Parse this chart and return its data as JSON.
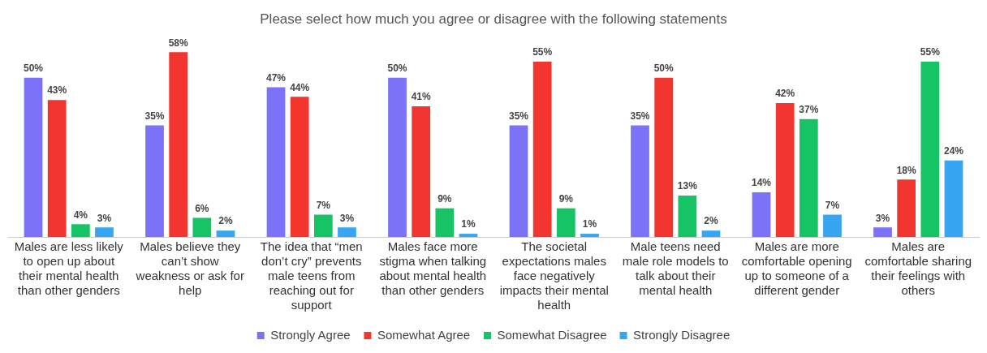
{
  "chart_data": {
    "type": "bar",
    "title": "Please select how much you agree or disagree with the following statements",
    "categories": [
      "Males are less likely to open up about their mental health than other genders",
      "Males believe they can’t show weakness or ask for help",
      "The idea that “men don’t cry” prevents male teens from reaching out for support",
      "Males face more stigma when talking about mental health than other genders",
      "The societal expectations males face negatively impacts their mental health",
      "Male teens need male role models to talk about their mental health",
      "Males are more comfortable opening up to someone of a different gender",
      "Males are comfortable sharing their feelings with others"
    ],
    "series": [
      {
        "name": "Strongly Agree",
        "color": "#7b72f7",
        "values": [
          50,
          35,
          47,
          50,
          35,
          35,
          14,
          3
        ],
        "value_labels": [
          "50%",
          "35%",
          "47%",
          "50%",
          "35%",
          "35%",
          "14%",
          "3%"
        ]
      },
      {
        "name": "Somewhat Agree",
        "color": "#f2352f",
        "values": [
          43,
          58,
          44,
          41,
          55,
          50,
          42,
          18
        ],
        "value_labels": [
          "43%",
          "58%",
          "44%",
          "41%",
          "55%",
          "50%",
          "42%",
          "18%"
        ]
      },
      {
        "name": "Somewhat Disagree",
        "color": "#17c465",
        "values": [
          4,
          6,
          7,
          9,
          9,
          13,
          37,
          55
        ],
        "value_labels": [
          "4%",
          "6%",
          "7%",
          "9%",
          "9%",
          "13%",
          "37%",
          "55%"
        ]
      },
      {
        "name": "Strongly Disagree",
        "color": "#37a6f2",
        "values": [
          3,
          2,
          3,
          1,
          1,
          2,
          7,
          24
        ],
        "value_labels": [
          "3%",
          "2%",
          "3%",
          "1%",
          "1%",
          "2%",
          "7%",
          "24%"
        ]
      }
    ],
    "legend": "bottom",
    "grid": false
  }
}
